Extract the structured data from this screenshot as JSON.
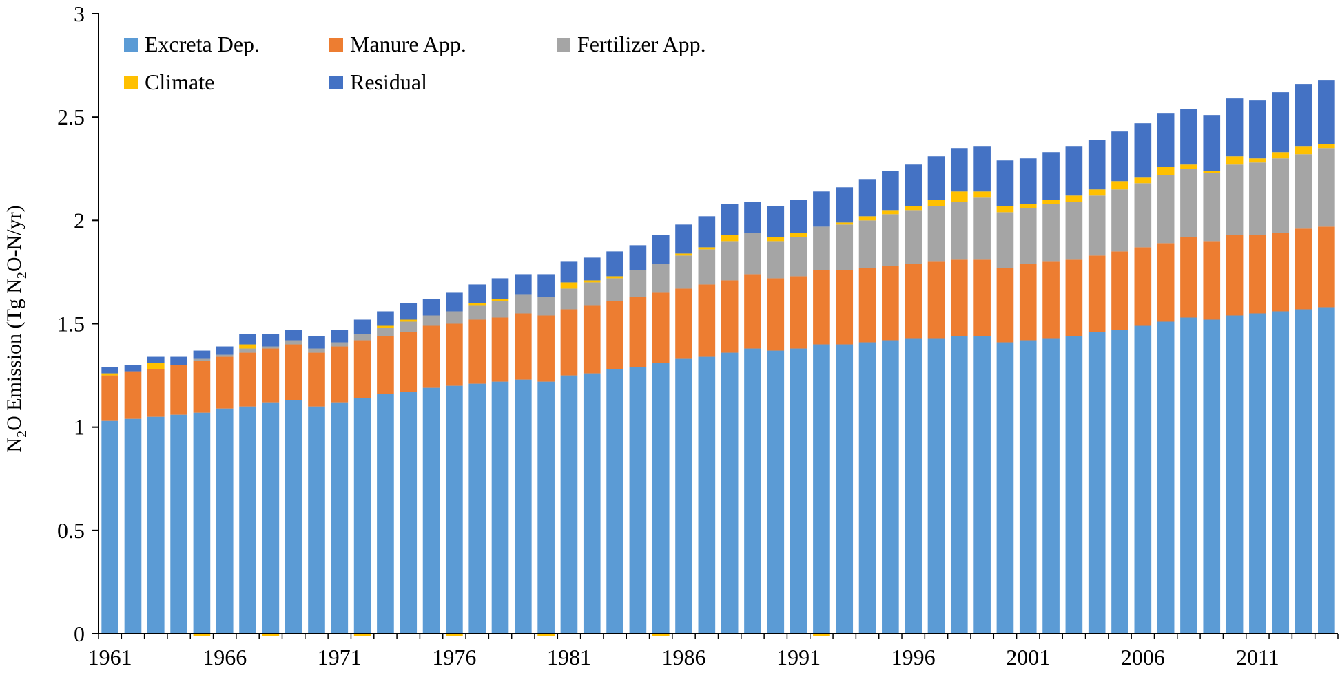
{
  "chart_data": {
    "type": "bar",
    "stacked": true,
    "title": "",
    "xlabel": "",
    "ylabel": {
      "prefix": "N",
      "sub1": "2",
      "middle": "O Emission (Tg N",
      "sub2": "2",
      "suffix": "O-N/yr)"
    },
    "ylim": [
      0,
      3
    ],
    "yticks": [
      "0",
      "0.5",
      "1",
      "1.5",
      "2",
      "2.5",
      "3"
    ],
    "xtick_labels": [
      "1961",
      "1966",
      "1971",
      "1976",
      "1981",
      "1986",
      "1991",
      "1996",
      "2001",
      "2006",
      "2011"
    ],
    "categories": [
      1961,
      1962,
      1963,
      1964,
      1965,
      1966,
      1967,
      1968,
      1969,
      1970,
      1971,
      1972,
      1973,
      1974,
      1975,
      1976,
      1977,
      1978,
      1979,
      1980,
      1981,
      1982,
      1983,
      1984,
      1985,
      1986,
      1987,
      1988,
      1989,
      1990,
      1991,
      1992,
      1993,
      1994,
      1995,
      1996,
      1997,
      1998,
      1999,
      2000,
      2001,
      2002,
      2003,
      2004,
      2005,
      2006,
      2007,
      2008,
      2009,
      2010,
      2011,
      2012,
      2013,
      2014
    ],
    "grid": false,
    "legend_position": "top-left",
    "series": [
      {
        "name": "Excreta Dep.",
        "color": "#5B9BD5",
        "values": [
          1.03,
          1.04,
          1.05,
          1.06,
          1.07,
          1.09,
          1.1,
          1.12,
          1.13,
          1.1,
          1.12,
          1.14,
          1.16,
          1.17,
          1.19,
          1.2,
          1.21,
          1.22,
          1.23,
          1.22,
          1.25,
          1.26,
          1.28,
          1.29,
          1.31,
          1.33,
          1.34,
          1.36,
          1.38,
          1.37,
          1.38,
          1.4,
          1.4,
          1.41,
          1.42,
          1.43,
          1.43,
          1.44,
          1.44,
          1.41,
          1.42,
          1.43,
          1.44,
          1.46,
          1.47,
          1.49,
          1.51,
          1.53,
          1.52,
          1.54,
          1.55,
          1.56,
          1.57,
          1.58
        ]
      },
      {
        "name": "Manure App.",
        "color": "#ED7D31",
        "values": [
          0.22,
          0.23,
          0.23,
          0.24,
          0.25,
          0.25,
          0.26,
          0.26,
          0.27,
          0.26,
          0.27,
          0.28,
          0.28,
          0.29,
          0.3,
          0.3,
          0.31,
          0.31,
          0.32,
          0.32,
          0.32,
          0.33,
          0.33,
          0.34,
          0.34,
          0.34,
          0.35,
          0.35,
          0.36,
          0.35,
          0.35,
          0.36,
          0.36,
          0.36,
          0.36,
          0.36,
          0.37,
          0.37,
          0.37,
          0.36,
          0.37,
          0.37,
          0.37,
          0.37,
          0.38,
          0.38,
          0.38,
          0.39,
          0.38,
          0.39,
          0.38,
          0.38,
          0.39,
          0.39
        ]
      },
      {
        "name": "Fertilizer App.",
        "color": "#A5A5A5",
        "values": [
          0.0,
          0.0,
          0.0,
          0.0,
          0.01,
          0.01,
          0.02,
          0.01,
          0.02,
          0.02,
          0.02,
          0.03,
          0.04,
          0.05,
          0.05,
          0.06,
          0.07,
          0.08,
          0.09,
          0.09,
          0.1,
          0.11,
          0.11,
          0.13,
          0.14,
          0.16,
          0.17,
          0.19,
          0.2,
          0.18,
          0.19,
          0.21,
          0.22,
          0.23,
          0.25,
          0.26,
          0.27,
          0.28,
          0.3,
          0.27,
          0.27,
          0.28,
          0.28,
          0.29,
          0.3,
          0.31,
          0.33,
          0.33,
          0.33,
          0.34,
          0.35,
          0.36,
          0.36,
          0.38
        ]
      },
      {
        "name": "Climate",
        "color": "#FFC000",
        "values": [
          0.01,
          0.0,
          0.03,
          0.0,
          -0.01,
          0.0,
          0.02,
          -0.01,
          0.0,
          0.0,
          0.0,
          -0.01,
          0.01,
          0.01,
          0.0,
          -0.01,
          0.01,
          0.01,
          0.0,
          -0.01,
          0.03,
          0.01,
          0.01,
          0.0,
          -0.01,
          0.01,
          0.01,
          0.03,
          0.0,
          0.02,
          0.02,
          -0.01,
          0.01,
          0.02,
          0.02,
          0.02,
          0.03,
          0.05,
          0.03,
          0.03,
          0.02,
          0.02,
          0.03,
          0.03,
          0.04,
          0.03,
          0.04,
          0.02,
          0.01,
          0.04,
          0.02,
          0.03,
          0.04,
          0.02
        ]
      },
      {
        "name": "Residual",
        "color": "#4472C4",
        "values": [
          0.03,
          0.03,
          0.03,
          0.04,
          0.04,
          0.04,
          0.05,
          0.06,
          0.05,
          0.06,
          0.06,
          0.07,
          0.07,
          0.08,
          0.08,
          0.09,
          0.09,
          0.1,
          0.1,
          0.11,
          0.1,
          0.11,
          0.12,
          0.12,
          0.14,
          0.14,
          0.15,
          0.15,
          0.15,
          0.15,
          0.16,
          0.17,
          0.17,
          0.18,
          0.19,
          0.2,
          0.21,
          0.21,
          0.22,
          0.22,
          0.22,
          0.23,
          0.24,
          0.24,
          0.24,
          0.26,
          0.26,
          0.27,
          0.27,
          0.28,
          0.28,
          0.29,
          0.3,
          0.31
        ]
      }
    ]
  }
}
